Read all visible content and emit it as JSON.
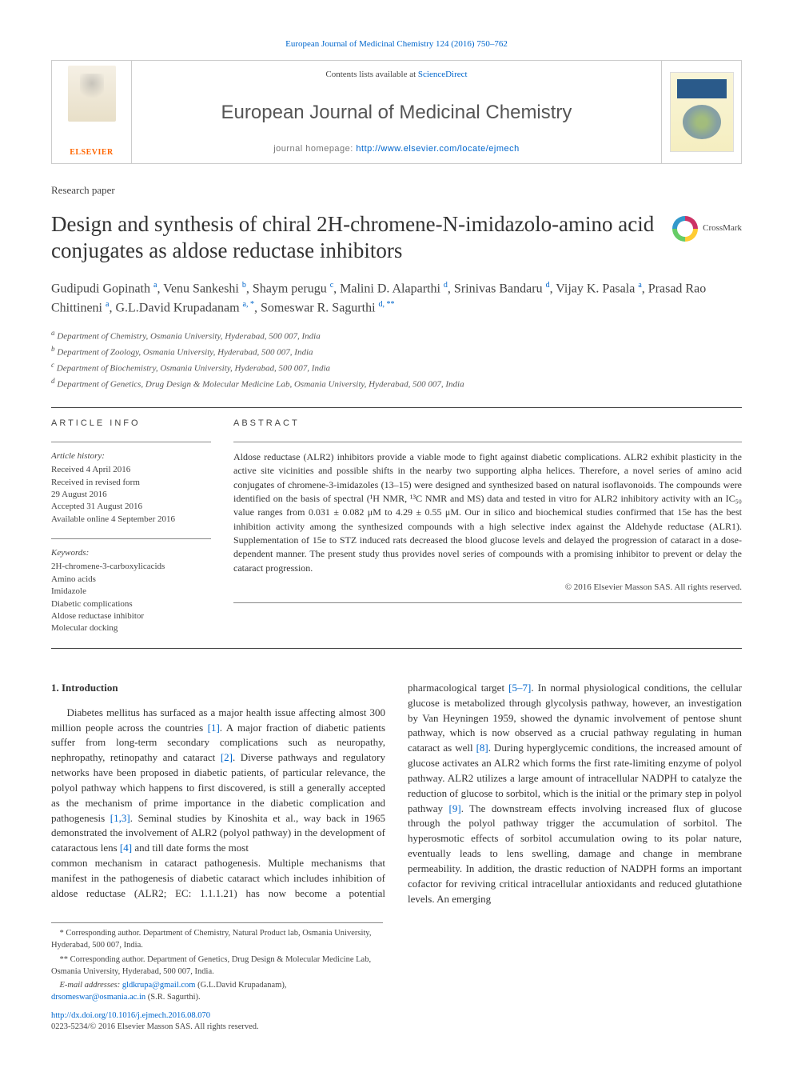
{
  "citation": "European Journal of Medicinal Chemistry 124 (2016) 750–762",
  "banner": {
    "contents_prefix": "Contents lists available at ",
    "contents_link": "ScienceDirect",
    "journal_name": "European Journal of Medicinal Chemistry",
    "homepage_prefix": "journal homepage: ",
    "homepage_url": "http://www.elsevier.com/locate/ejmech",
    "publisher": "ELSEVIER"
  },
  "paper_type": "Research paper",
  "title": "Design and synthesis of chiral 2H-chromene-N-imidazolo-amino acid conjugates as aldose reductase inhibitors",
  "crossmark_label": "CrossMark",
  "authors_html": "Gudipudi Gopinath <sup>a</sup>, Venu Sankeshi <sup>b</sup>, Shaym perugu <sup>c</sup>, Malini D. Alaparthi <sup>d</sup>, Srinivas Bandaru <sup>d</sup>, Vijay K. Pasala <sup>a</sup>, Prasad Rao Chittineni <sup>a</sup>, G.L.David Krupadanam <sup>a, *</sup>, Someswar R. Sagurthi <sup>d, **</sup>",
  "affiliations": [
    "a Department of Chemistry, Osmania University, Hyderabad, 500 007, India",
    "b Department of Zoology, Osmania University, Hyderabad, 500 007, India",
    "c Department of Biochemistry, Osmania University, Hyderabad, 500 007, India",
    "d Department of Genetics, Drug Design & Molecular Medicine Lab, Osmania University, Hyderabad, 500 007, India"
  ],
  "article_info_label": "ARTICLE INFO",
  "abstract_label": "ABSTRACT",
  "history": {
    "head": "Article history:",
    "lines": [
      "Received 4 April 2016",
      "Received in revised form",
      "29 August 2016",
      "Accepted 31 August 2016",
      "Available online 4 September 2016"
    ]
  },
  "keywords": {
    "head": "Keywords:",
    "items": [
      "2H-chromene-3-carboxylicacids",
      "Amino acids",
      "Imidazole",
      "Diabetic complications",
      "Aldose reductase inhibitor",
      "Molecular docking"
    ]
  },
  "abstract": "Aldose reductase (ALR2) inhibitors provide a viable mode to fight against diabetic complications. ALR2 exhibit plasticity in the active site vicinities and possible shifts in the nearby two supporting alpha helices. Therefore, a novel series of amino acid conjugates of chromene-3-imidazoles (13–15) were designed and synthesized based on natural isoflavonoids. The compounds were identified on the basis of spectral (¹H NMR, ¹³C NMR and MS) data and tested in vitro for ALR2 inhibitory activity with an IC₅₀ value ranges from 0.031 ± 0.082 μM to 4.29 ± 0.55 μM. Our in silico and biochemical studies confirmed that 15e has the best inhibition activity among the synthesized compounds with a high selective index against the Aldehyde reductase (ALR1). Supplementation of 15e to STZ induced rats decreased the blood glucose levels and delayed the progression of cataract in a dose-dependent manner. The present study thus provides novel series of compounds with a promising inhibitor to prevent or delay the cataract progression.",
  "copyright": "© 2016 Elsevier Masson SAS. All rights reserved.",
  "intro_head": "1. Introduction",
  "intro_p1": "Diabetes mellitus has surfaced as a major health issue affecting almost 300 million people across the countries [1]. A major fraction of diabetic patients suffer from long-term secondary complications such as neuropathy, nephropathy, retinopathy and cataract [2]. Diverse pathways and regulatory networks have been proposed in diabetic patients, of particular relevance, the polyol pathway which happens to first discovered, is still a generally accepted as the mechanism of prime importance in the diabetic complication and pathogenesis [1,3]. Seminal studies by Kinoshita et al., way back in 1965 demonstrated the involvement of ALR2 (polyol pathway) in the development of cataractous lens [4] and till date forms the most",
  "intro_p2": "common mechanism in cataract pathogenesis. Multiple mechanisms that manifest in the pathogenesis of diabetic cataract which includes inhibition of aldose reductase (ALR2; EC: 1.1.1.21) has now become a potential pharmacological target [5–7]. In normal physiological conditions, the cellular glucose is metabolized through glycolysis pathway, however, an investigation by Van Heyningen 1959, showed the dynamic involvement of pentose shunt pathway, which is now observed as a crucial pathway regulating in human cataract as well [8]. During hyperglycemic conditions, the increased amount of glucose activates an ALR2 which forms the first rate-limiting enzyme of polyol pathway. ALR2 utilizes a large amount of intracellular NADPH to catalyze the reduction of glucose to sorbitol, which is the initial or the primary step in polyol pathway [9]. The downstream effects involving increased flux of glucose through the polyol pathway trigger the accumulation of sorbitol. The hyperosmotic effects of sorbitol accumulation owing to its polar nature, eventually leads to lens swelling, damage and change in membrane permeability. In addition, the drastic reduction of NADPH forms an important cofactor for reviving critical intracellular antioxidants and reduced glutathione levels. An emerging",
  "footnotes": {
    "fn1": "* Corresponding author. Department of Chemistry, Natural Product lab, Osmania University, Hyderabad, 500 007, India.",
    "fn2": "** Corresponding author. Department of Genetics, Drug Design & Molecular Medicine Lab, Osmania University, Hyderabad, 500 007, India.",
    "email_label": "E-mail addresses: ",
    "email1": "gldkrupa@gmail.com",
    "email1_paren": " (G.L.David Krupadanam), ",
    "email2": "drsomeswar@osmania.ac.in",
    "email2_paren": " (S.R. Sagurthi)."
  },
  "doi": {
    "url": "http://dx.doi.org/10.1016/j.ejmech.2016.08.070",
    "issn_line": "0223-5234/© 2016 Elsevier Masson SAS. All rights reserved."
  },
  "colors": {
    "link": "#0066cc",
    "publisher_orange": "#ff6600",
    "text": "#333333",
    "muted": "#555555",
    "rule": "#444444"
  },
  "typography": {
    "body_pt": 13,
    "title_pt": 27,
    "journal_name_pt": 24,
    "authors_pt": 16,
    "abstract_pt": 12,
    "small_pt": 11,
    "footnote_pt": 10.5
  }
}
